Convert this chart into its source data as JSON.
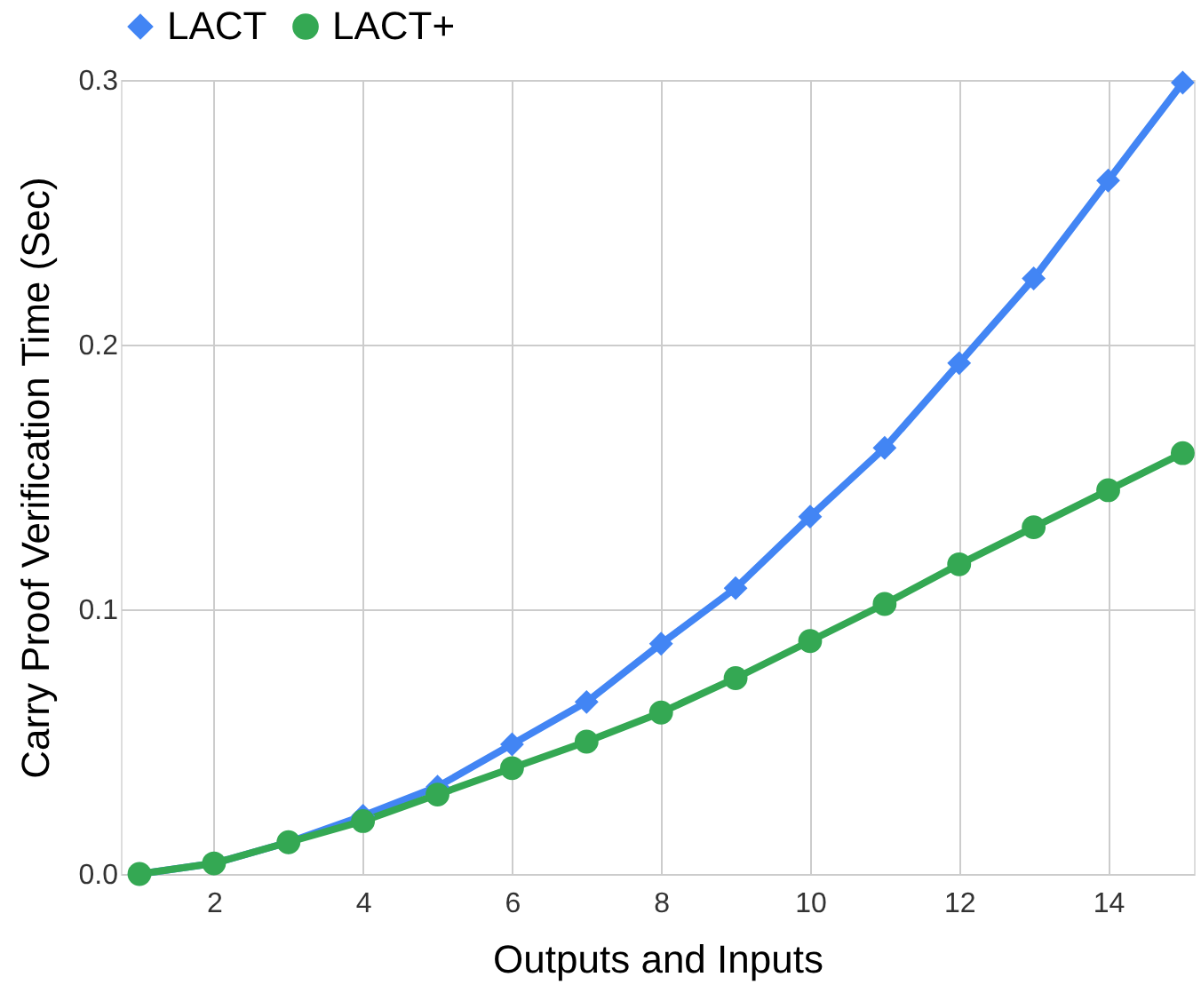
{
  "chart_data": {
    "type": "line",
    "xlabel": "Outputs and Inputs",
    "ylabel": "Carry Proof Verification Time (Sec)",
    "x": [
      1,
      2,
      3,
      4,
      5,
      6,
      7,
      8,
      9,
      10,
      11,
      12,
      13,
      14,
      15
    ],
    "series": [
      {
        "name": "LACT",
        "color": "#4285f4",
        "marker": "diamond",
        "values": [
          0.0,
          0.004,
          0.012,
          0.022,
          0.033,
          0.049,
          0.065,
          0.087,
          0.108,
          0.135,
          0.161,
          0.193,
          0.225,
          0.262,
          0.299
        ]
      },
      {
        "name": "LACT+",
        "color": "#34a853",
        "marker": "circle",
        "values": [
          0.0,
          0.004,
          0.012,
          0.02,
          0.03,
          0.04,
          0.05,
          0.061,
          0.074,
          0.088,
          0.102,
          0.117,
          0.131,
          0.145,
          0.159
        ]
      }
    ],
    "xlim": [
      0.75,
      15.15
    ],
    "xticks": [
      2,
      4,
      6,
      8,
      10,
      12,
      14
    ],
    "ylim": [
      0,
      0.3
    ],
    "yticks": [
      {
        "value": 0,
        "label": "0.0"
      },
      0.1,
      0.2,
      0.3
    ],
    "grid": true,
    "legend": "top",
    "line_style": "solid"
  }
}
